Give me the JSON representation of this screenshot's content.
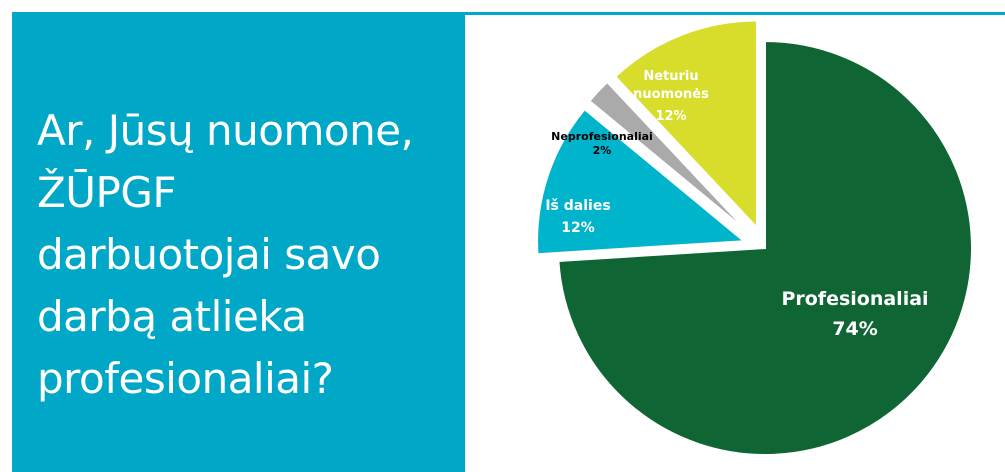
{
  "question": {
    "lines": [
      "Ar, Jūsų nuomone,",
      "ŽŪPGF",
      "darbuotojai savo",
      "darbą atlieka",
      "profesionaliai?"
    ]
  },
  "colors": {
    "panel": "#00a7c7",
    "text_on_panel": "#ffffff"
  },
  "chart_data": {
    "type": "pie",
    "title": "",
    "slices": [
      {
        "label": "Profesionaliai",
        "value": 74,
        "value_label": "74%",
        "color": "#0f6634",
        "exploded": false,
        "label_color": "#ffffff"
      },
      {
        "label": "Iš dalies",
        "value": 12,
        "value_label": "12%",
        "color": "#00b4cc",
        "exploded": true,
        "label_color": "#ffffff"
      },
      {
        "label": "Neprofesionaliai",
        "value": 2,
        "value_label": "2%",
        "color": "#aaaaaa",
        "exploded": true,
        "label_color": "#000000"
      },
      {
        "label": "Neturiu nuomonės",
        "value": 12,
        "value_label": "12%",
        "color": "#d8dc2a",
        "exploded": true,
        "label_color": "#ffffff"
      }
    ]
  }
}
